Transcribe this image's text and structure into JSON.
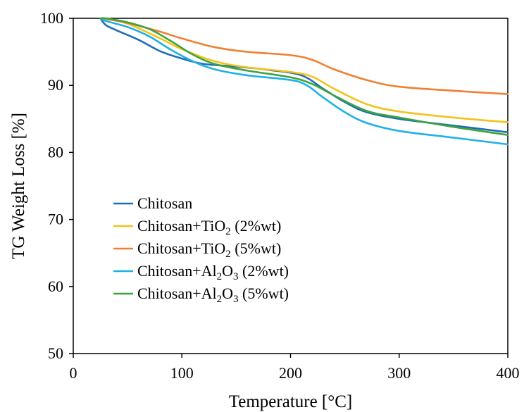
{
  "chart_data": {
    "type": "line",
    "title": "",
    "xlabel": "Temperature [°C]",
    "ylabel": "TG Weight Loss [%]",
    "xlim": [
      0,
      400
    ],
    "ylim": [
      50,
      100
    ],
    "x_ticks": [
      0,
      100,
      200,
      300,
      400
    ],
    "y_ticks": [
      50,
      60,
      70,
      80,
      90,
      100
    ],
    "grid": false,
    "legend_position": "lower-left",
    "series": [
      {
        "name": "Chitosan",
        "name_parts": [
          {
            "t": "Chitosan"
          }
        ],
        "color": "#1f6eb4",
        "x": [
          25,
          30,
          40,
          60,
          80,
          100,
          120,
          150,
          180,
          210,
          230,
          250,
          270,
          300,
          350,
          400
        ],
        "y": [
          100,
          99,
          98.2,
          96.8,
          95.1,
          94,
          93.2,
          92.8,
          92.3,
          91.5,
          89.5,
          87.5,
          86,
          85,
          84,
          83
        ]
      },
      {
        "name": "Chitosan+TiO2 (2%wt)",
        "name_parts": [
          {
            "t": "Chitosan+TiO"
          },
          {
            "t": "2",
            "sub": true
          },
          {
            "t": " (2%wt)"
          }
        ],
        "color": "#f5c21b",
        "x": [
          25,
          30,
          50,
          80,
          100,
          130,
          160,
          200,
          220,
          240,
          270,
          300,
          350,
          400
        ],
        "y": [
          100,
          99.9,
          99.2,
          97,
          95.4,
          93.6,
          92.7,
          92,
          91.3,
          89.5,
          87.2,
          86.1,
          85.2,
          84.5
        ]
      },
      {
        "name": "Chitosan+TiO2 (5%wt)",
        "name_parts": [
          {
            "t": "Chitosan+TiO"
          },
          {
            "t": "2",
            "sub": true
          },
          {
            "t": " (5%wt)"
          }
        ],
        "color": "#f08030",
        "x": [
          25,
          30,
          50,
          80,
          100,
          130,
          160,
          200,
          220,
          240,
          270,
          300,
          350,
          400
        ],
        "y": [
          100,
          99.9,
          99.3,
          98,
          97,
          95.7,
          95,
          94.5,
          93.8,
          92.4,
          90.8,
          89.8,
          89.2,
          88.7
        ]
      },
      {
        "name": "Chitosan+Al2O3 (2%wt)",
        "name_parts": [
          {
            "t": "Chitosan+Al"
          },
          {
            "t": "2",
            "sub": true
          },
          {
            "t": "O"
          },
          {
            "t": "3",
            "sub": true
          },
          {
            "t": " (2%wt)"
          }
        ],
        "color": "#1fb1e6",
        "x": [
          25,
          30,
          50,
          70,
          90,
          110,
          130,
          160,
          200,
          215,
          230,
          250,
          270,
          300,
          350,
          400
        ],
        "y": [
          100,
          99.6,
          98.7,
          97.3,
          95.3,
          93.6,
          92.4,
          91.5,
          90.8,
          90,
          88.2,
          86,
          84.4,
          83.2,
          82.2,
          81.2
        ]
      },
      {
        "name": "Chitosan+Al2O3 (5%wt)",
        "name_parts": [
          {
            "t": "Chitosan+Al"
          },
          {
            "t": "2",
            "sub": true
          },
          {
            "t": "O"
          },
          {
            "t": "3",
            "sub": true
          },
          {
            "t": " (5%wt)"
          }
        ],
        "color": "#3ea33e",
        "x": [
          25,
          30,
          50,
          70,
          90,
          110,
          130,
          160,
          200,
          220,
          240,
          270,
          300,
          350,
          400
        ],
        "y": [
          100,
          100,
          99.4,
          98.4,
          96.6,
          94.6,
          93.2,
          92.2,
          91.2,
          90.2,
          88.5,
          86.2,
          85.2,
          83.8,
          82.6
        ]
      }
    ]
  }
}
